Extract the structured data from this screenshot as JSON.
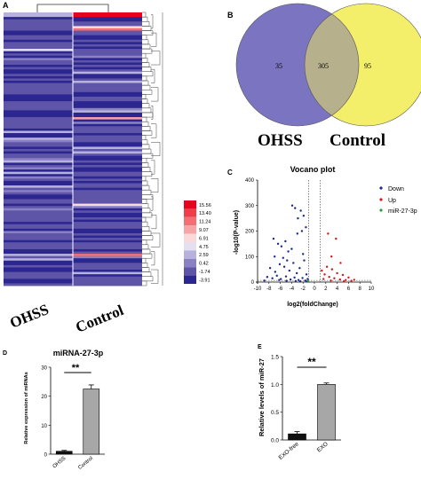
{
  "panels": {
    "A": {
      "letter": "A",
      "row_names": [
        "OHSS",
        "Control"
      ],
      "colorbar": {
        "ticks": [
          "15.56",
          "13.40",
          "11.24",
          "9.07",
          "6.91",
          "4.75",
          "2.59",
          "0.42",
          "-1.74",
          "-3.91"
        ],
        "colors": [
          "#e8001c",
          "#ee3e4a",
          "#f36f76",
          "#f8a4a7",
          "#fbd8d9",
          "#e4e0f2",
          "#b7b1dd",
          "#8a80c4",
          "#5f55a8",
          "#2c2690"
        ]
      }
    },
    "B": {
      "letter": "B",
      "left_label": "OHSS",
      "right_label": "Control",
      "left_only": "35",
      "overlap": "305",
      "right_only": "95",
      "colors": {
        "left": "#7b74c0",
        "right": "#f4ef6a",
        "overlap": "#b6b08c"
      }
    },
    "C": {
      "letter": "C",
      "title": "Vocano plot",
      "xlabel": "log2(foldChange)",
      "ylabel": "-log10(P-value)",
      "x_ticks": [
        "-10",
        "-8",
        "-6",
        "-4",
        "-2",
        "0",
        "2",
        "4",
        "6",
        "8",
        "10"
      ],
      "y_ticks": [
        "0",
        "100",
        "200",
        "300",
        "400"
      ],
      "legend": [
        {
          "label": "Down",
          "color": "#1c2a8a"
        },
        {
          "label": "Up",
          "color": "#d0181d"
        },
        {
          "label": "miR-27-3p",
          "color": "#2e9a3a"
        }
      ]
    },
    "D": {
      "letter": "D",
      "title": "miRNA-27-3p",
      "ylabel": "Relative expression of miRNAs",
      "significance": "**"
    },
    "E": {
      "letter": "E",
      "ylabel": "Relative levels of miR-27",
      "significance": "**"
    }
  },
  "chart_data": [
    {
      "type": "heatmap",
      "panel": "A",
      "columns": [
        "OHSS",
        "Control"
      ],
      "row_count": 120,
      "value_range": [
        -3.91,
        15.56
      ],
      "dominant_value": -3.91
    },
    {
      "type": "venn",
      "panel": "B",
      "sets": [
        "OHSS",
        "Control"
      ],
      "only_left": 35,
      "intersection": 305,
      "only_right": 95
    },
    {
      "type": "scatter",
      "panel": "C",
      "title": "Vocano plot",
      "xlim": [
        -10,
        10
      ],
      "ylim": [
        0,
        400
      ],
      "thresholds_x": [
        -1,
        1
      ],
      "threshold_y": 1.3,
      "series": [
        {
          "name": "Down",
          "points": [
            [
              -7.2,
              170
            ],
            [
              -6.4,
              150
            ],
            [
              -5.8,
              140
            ],
            [
              -5.1,
              160
            ],
            [
              -4.6,
              120
            ],
            [
              -3.9,
              300
            ],
            [
              -3.4,
              290
            ],
            [
              -2.9,
              250
            ],
            [
              -2.4,
              280
            ],
            [
              -1.9,
              260
            ],
            [
              -1.5,
              215
            ],
            [
              -5.5,
              95
            ],
            [
              -4.8,
              85
            ],
            [
              -3.0,
              190
            ],
            [
              -2.2,
              200
            ],
            [
              -7.8,
              55
            ],
            [
              -6.9,
              40
            ],
            [
              -6.1,
              70
            ],
            [
              -5.3,
              60
            ],
            [
              -4.4,
              45
            ],
            [
              -3.7,
              75
            ],
            [
              -3.1,
              35
            ],
            [
              -2.6,
              55
            ],
            [
              -1.8,
              85
            ],
            [
              -1.4,
              30
            ],
            [
              -8.3,
              20
            ],
            [
              -7.4,
              15
            ],
            [
              -6.6,
              25
            ],
            [
              -5.9,
              12
            ],
            [
              -5.0,
              22
            ],
            [
              -4.2,
              10
            ],
            [
              -3.5,
              18
            ],
            [
              -2.8,
              8
            ],
            [
              -2.1,
              16
            ],
            [
              -1.6,
              6
            ],
            [
              -1.2,
              12
            ],
            [
              -8.8,
              6
            ],
            [
              -6.2,
              8
            ],
            [
              -4.9,
              5
            ],
            [
              -3.3,
              4
            ],
            [
              -2.5,
              3
            ],
            [
              -1.3,
              2
            ],
            [
              -7.0,
              100
            ],
            [
              -4.0,
              130
            ],
            [
              -2.0,
              110
            ]
          ]
        },
        {
          "name": "Up",
          "points": [
            [
              1.3,
              45
            ],
            [
              1.8,
              30
            ],
            [
              2.2,
              60
            ],
            [
              2.6,
              20
            ],
            [
              3.1,
              50
            ],
            [
              3.5,
              15
            ],
            [
              4.0,
              35
            ],
            [
              4.5,
              10
            ],
            [
              5.0,
              28
            ],
            [
              5.5,
              8
            ],
            [
              6.0,
              18
            ],
            [
              6.5,
              5
            ],
            [
              3.0,
              100
            ],
            [
              3.8,
              170
            ],
            [
              2.4,
              190
            ],
            [
              4.6,
              75
            ],
            [
              1.6,
              12
            ],
            [
              2.9,
              6
            ],
            [
              5.2,
              3
            ],
            [
              7.0,
              9
            ]
          ]
        },
        {
          "name": "miR-27-3p",
          "points": [
            [
              -1.1,
              4
            ]
          ]
        }
      ]
    },
    {
      "type": "bar",
      "panel": "D",
      "title": "miRNA-27-3p",
      "categories": [
        "OHSS",
        "Control"
      ],
      "values": [
        1,
        22.5
      ],
      "errors": [
        0.3,
        1.4
      ],
      "ylim": [
        0,
        30
      ],
      "y_ticks": [
        0,
        10,
        20,
        30
      ]
    },
    {
      "type": "bar",
      "panel": "E",
      "categories": [
        "EXO-free",
        "EXO"
      ],
      "values": [
        0.11,
        1.0
      ],
      "errors": [
        0.04,
        0.025
      ],
      "ylim": [
        0,
        1.5
      ],
      "y_ticks": [
        0.0,
        0.5,
        1.0,
        1.5
      ]
    }
  ]
}
